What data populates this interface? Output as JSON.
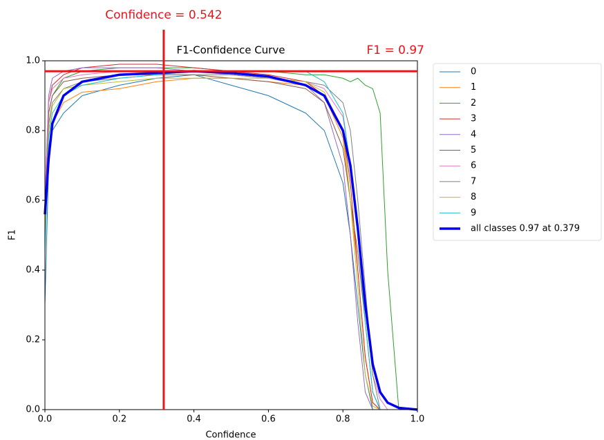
{
  "chart_data": {
    "type": "line",
    "title": "F1-Confidence Curve",
    "x_label": "Confidence",
    "y_label": "F1",
    "x": [
      0,
      0.01,
      0.02,
      0.05,
      0.1,
      0.2,
      0.3,
      0.4,
      0.5,
      0.6,
      0.7,
      0.75,
      0.8,
      0.82,
      0.84,
      0.86,
      0.88,
      0.9,
      0.92,
      0.95,
      1.0
    ],
    "series": [
      {
        "name": "0",
        "color": "#1f77b4",
        "values": [
          0.3,
          0.7,
          0.8,
          0.85,
          0.9,
          0.93,
          0.95,
          0.96,
          0.93,
          0.9,
          0.85,
          0.8,
          0.65,
          0.5,
          0.3,
          0.1,
          0,
          0,
          0,
          0,
          0
        ]
      },
      {
        "name": "1",
        "color": "#ff7f0e",
        "values": [
          0.5,
          0.75,
          0.82,
          0.88,
          0.91,
          0.92,
          0.94,
          0.95,
          0.95,
          0.94,
          0.93,
          0.9,
          0.78,
          0.6,
          0.4,
          0.15,
          0.02,
          0,
          0,
          0,
          0
        ]
      },
      {
        "name": "2",
        "color": "#2ca02c",
        "values": [
          0.55,
          0.85,
          0.9,
          0.95,
          0.97,
          0.98,
          0.98,
          0.98,
          0.97,
          0.97,
          0.96,
          0.96,
          0.95,
          0.94,
          0.95,
          0.93,
          0.92,
          0.85,
          0.4,
          0,
          0
        ]
      },
      {
        "name": "3",
        "color": "#d62728",
        "values": [
          0.6,
          0.88,
          0.93,
          0.96,
          0.98,
          0.99,
          0.99,
          0.98,
          0.97,
          0.96,
          0.94,
          0.9,
          0.8,
          0.65,
          0.4,
          0.15,
          0.02,
          0,
          0,
          0,
          0
        ]
      },
      {
        "name": "4",
        "color": "#9467bd",
        "values": [
          0.6,
          0.9,
          0.95,
          0.97,
          0.98,
          0.98,
          0.98,
          0.97,
          0.96,
          0.95,
          0.93,
          0.88,
          0.7,
          0.5,
          0.25,
          0.05,
          0,
          0,
          0,
          0,
          0
        ]
      },
      {
        "name": "5",
        "color": "#8c564b",
        "values": [
          0.55,
          0.85,
          0.9,
          0.94,
          0.95,
          0.96,
          0.96,
          0.96,
          0.95,
          0.94,
          0.92,
          0.88,
          0.75,
          0.6,
          0.45,
          0.25,
          0.05,
          0,
          0,
          0,
          0
        ]
      },
      {
        "name": "6",
        "color": "#e377c2",
        "values": [
          0.6,
          0.88,
          0.92,
          0.95,
          0.96,
          0.97,
          0.97,
          0.97,
          0.96,
          0.95,
          0.94,
          0.92,
          0.84,
          0.7,
          0.5,
          0.3,
          0.1,
          0.03,
          0,
          0,
          0
        ]
      },
      {
        "name": "7",
        "color": "#7f7f7f",
        "values": [
          0.5,
          0.82,
          0.88,
          0.92,
          0.94,
          0.95,
          0.96,
          0.96,
          0.96,
          0.95,
          0.94,
          0.93,
          0.88,
          0.8,
          0.6,
          0.35,
          0.1,
          0,
          0,
          0,
          0
        ]
      },
      {
        "name": "8",
        "color": "#bcbd22",
        "values": [
          0.5,
          0.8,
          0.87,
          0.92,
          0.93,
          0.94,
          0.95,
          0.95,
          0.95,
          0.95,
          0.94,
          0.91,
          0.8,
          0.6,
          0.35,
          0.1,
          0.01,
          0,
          0,
          0,
          0
        ]
      },
      {
        "name": "9",
        "color": "#17becf",
        "values": [
          0.45,
          0.78,
          0.85,
          0.9,
          0.93,
          0.95,
          0.96,
          0.97,
          0.97,
          0.97,
          0.97,
          0.94,
          0.85,
          0.7,
          0.5,
          0.25,
          0.05,
          0,
          0,
          0,
          0
        ]
      },
      {
        "name": "all classes 0.97 at 0.379",
        "color": "#0000ee",
        "values": [
          0.56,
          0.72,
          0.82,
          0.9,
          0.94,
          0.96,
          0.965,
          0.97,
          0.965,
          0.955,
          0.93,
          0.9,
          0.8,
          0.7,
          0.52,
          0.3,
          0.13,
          0.05,
          0.02,
          0.005,
          0
        ]
      }
    ],
    "xlim": [
      0,
      1
    ],
    "ylim": [
      0,
      1
    ],
    "xticks": [
      {
        "value": 0,
        "label": "0.0"
      },
      0.2,
      0.4,
      0.6,
      0.8,
      {
        "value": 1,
        "label": "1.0"
      }
    ],
    "yticks": [
      {
        "value": 0,
        "label": "0.0"
      },
      0.2,
      0.4,
      0.6,
      0.8,
      {
        "value": 1,
        "label": "1.0"
      }
    ],
    "annotations": [
      {
        "text": "Confidence = 0.542",
        "x": 0.319,
        "color": "#e8141a"
      },
      {
        "text": "F1 = 0.97",
        "y": 0.97,
        "color": "#e8141a"
      }
    ],
    "legend": "outside-right"
  }
}
